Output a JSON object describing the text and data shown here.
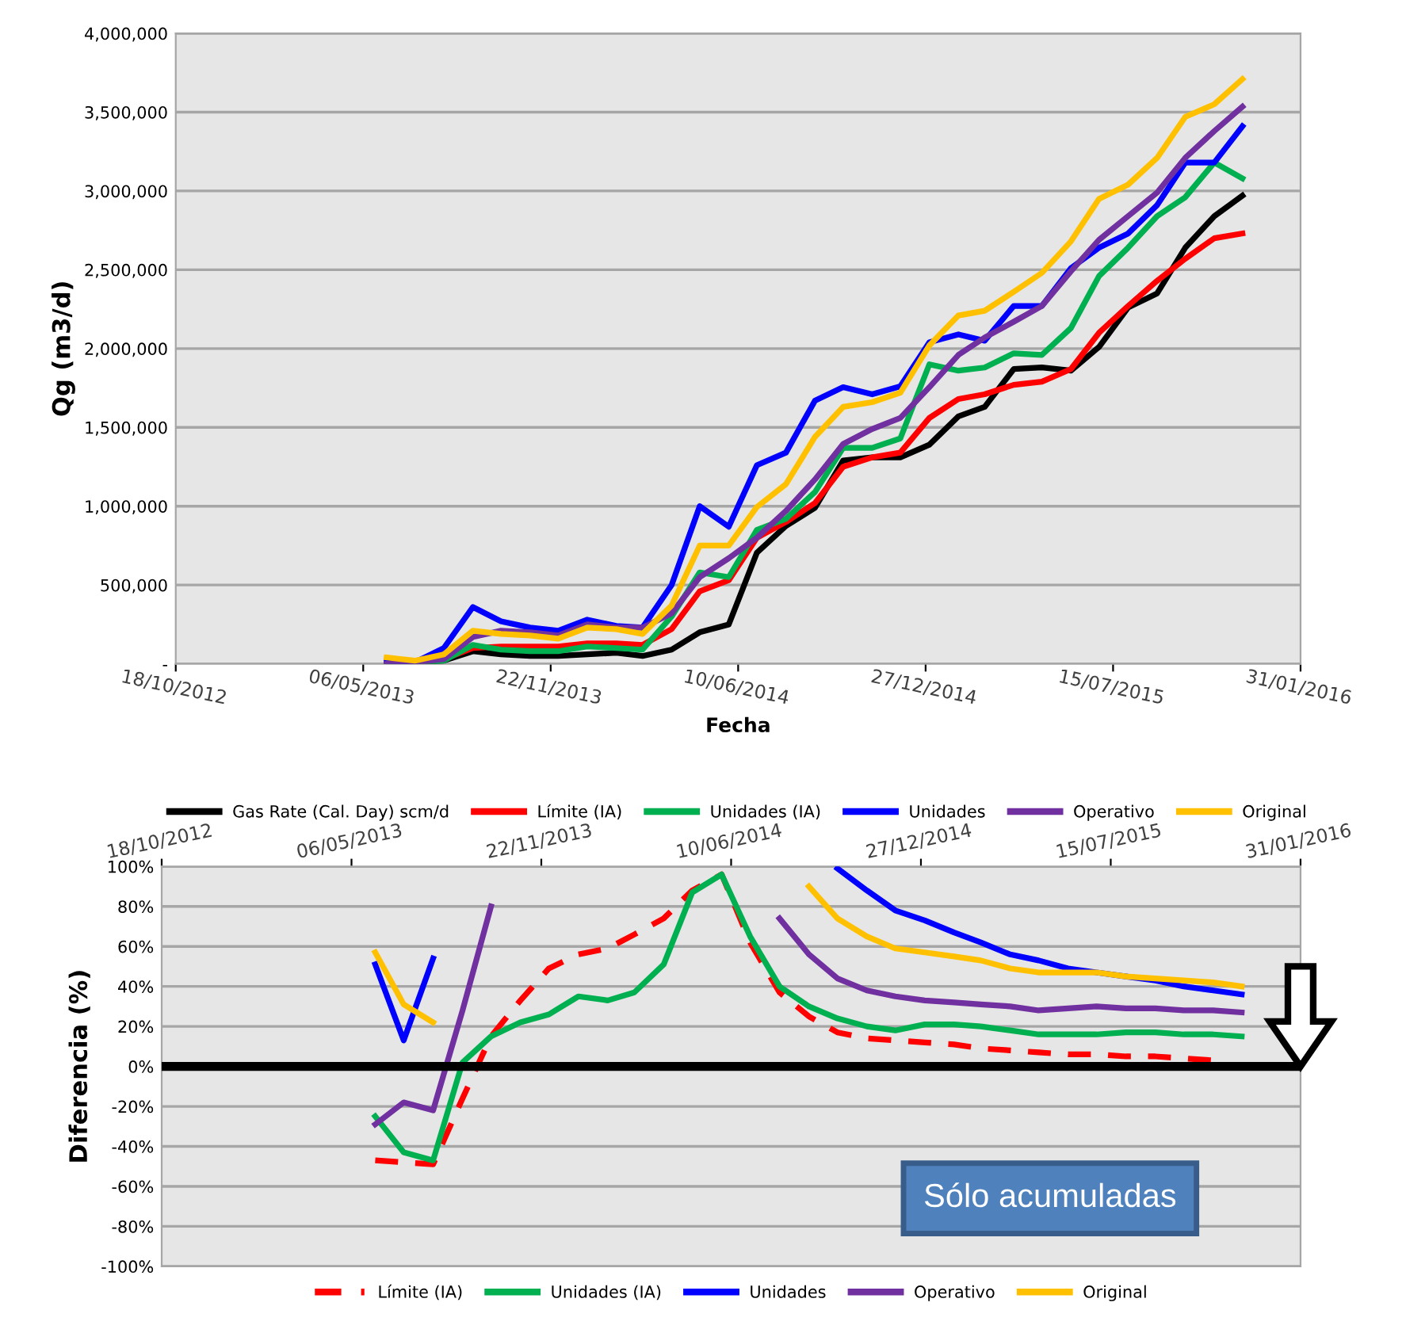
{
  "chart_data": [
    {
      "type": "line",
      "ylabel": "Qg (m3/d)",
      "xlabel": "Fecha",
      "grid": "y",
      "legend": "bottom",
      "marker": "none",
      "x": [
        "2013-05-31",
        "2013-06-30",
        "2013-07-31",
        "2013-08-31",
        "2013-09-30",
        "2013-10-31",
        "2013-11-30",
        "2013-12-31",
        "2014-01-31",
        "2014-02-28",
        "2014-03-31",
        "2014-04-30",
        "2014-05-31",
        "2014-06-30",
        "2014-07-31",
        "2014-08-31",
        "2014-09-30",
        "2014-10-31",
        "2014-11-30",
        "2014-12-31",
        "2015-01-31",
        "2015-02-28",
        "2015-03-31",
        "2015-04-30",
        "2015-05-31",
        "2015-06-30",
        "2015-07-31",
        "2015-08-31",
        "2015-09-30",
        "2015-10-31",
        "2015-11-30"
      ],
      "xlim": [
        "2012-10-18",
        "2016-01-31"
      ],
      "xticks": [
        {
          "value": "2012-10-18",
          "label": "18/10/2012"
        },
        {
          "value": "2013-05-06",
          "label": "06/05/2013"
        },
        {
          "value": "2013-11-22",
          "label": "22/11/2013"
        },
        {
          "value": "2014-06-10",
          "label": "10/06/2014"
        },
        {
          "value": "2014-12-27",
          "label": "27/12/2014"
        },
        {
          "value": "2015-07-15",
          "label": "15/07/2015"
        },
        {
          "value": "2016-01-31",
          "label": "31/01/2016"
        }
      ],
      "ylim": [
        0,
        4000000
      ],
      "yticks": [
        {
          "value": 0,
          "label": "-"
        },
        {
          "value": 500000,
          "label": "500,000"
        },
        {
          "value": 1000000,
          "label": "1,000,000"
        },
        {
          "value": 1500000,
          "label": "1,500,000"
        },
        {
          "value": 2000000,
          "label": "2,000,000"
        },
        {
          "value": 2500000,
          "label": "2,500,000"
        },
        {
          "value": 3000000,
          "label": "3,000,000"
        },
        {
          "value": 3500000,
          "label": "3,500,000"
        },
        {
          "value": 4000000,
          "label": "4,000,000"
        }
      ],
      "series": [
        {
          "name": "Gas Rate (Cal. Day) scm/d",
          "color": "#000000",
          "line_style": "solid",
          "values": [
            0,
            10000,
            20000,
            80000,
            60000,
            50000,
            50000,
            60000,
            70000,
            50000,
            90000,
            200000,
            250000,
            705000,
            875000,
            990000,
            1290000,
            1310000,
            1310000,
            1390000,
            1570000,
            1630000,
            1870000,
            1880000,
            1860000,
            2010000,
            2260000,
            2350000,
            2640000,
            2840000,
            2970000
          ]
        },
        {
          "name": "Límite (IA)",
          "color": "#ff0000",
          "line_style": "solid",
          "values": [
            10000,
            10000,
            30000,
            100000,
            110000,
            110000,
            110000,
            130000,
            130000,
            120000,
            220000,
            460000,
            530000,
            800000,
            900000,
            1020000,
            1250000,
            1310000,
            1340000,
            1560000,
            1680000,
            1710000,
            1770000,
            1790000,
            1870000,
            2100000,
            2270000,
            2430000,
            2570000,
            2700000,
            2730000
          ]
        },
        {
          "name": "Unidades (IA)",
          "color": "#00b050",
          "line_style": "solid",
          "values": [
            0,
            10000,
            20000,
            120000,
            90000,
            80000,
            80000,
            110000,
            100000,
            90000,
            300000,
            580000,
            550000,
            850000,
            920000,
            1090000,
            1370000,
            1370000,
            1430000,
            1900000,
            1860000,
            1880000,
            1970000,
            1960000,
            2130000,
            2460000,
            2640000,
            2840000,
            2960000,
            3180000,
            3080000
          ]
        },
        {
          "name": "Unidades",
          "color": "#0000ff",
          "line_style": "solid",
          "values": [
            20000,
            10000,
            100000,
            360000,
            270000,
            230000,
            210000,
            280000,
            240000,
            230000,
            500000,
            1000000,
            870000,
            1260000,
            1340000,
            1670000,
            1755000,
            1710000,
            1760000,
            2040000,
            2090000,
            2050000,
            2270000,
            2270000,
            2510000,
            2640000,
            2730000,
            2910000,
            3180000,
            3180000,
            3410000
          ]
        },
        {
          "name": "Operativo",
          "color": "#7030a0",
          "line_style": "solid",
          "values": [
            0,
            10000,
            30000,
            170000,
            210000,
            200000,
            180000,
            250000,
            230000,
            230000,
            320000,
            550000,
            670000,
            800000,
            970000,
            1170000,
            1395000,
            1490000,
            1560000,
            1755000,
            1960000,
            2070000,
            2170000,
            2270000,
            2490000,
            2690000,
            2840000,
            2990000,
            3210000,
            3380000,
            3535000
          ]
        },
        {
          "name": "Original",
          "color": "#ffc000",
          "line_style": "solid",
          "values": [
            40000,
            20000,
            60000,
            210000,
            190000,
            180000,
            160000,
            230000,
            220000,
            190000,
            370000,
            750000,
            750000,
            995000,
            1140000,
            1440000,
            1630000,
            1660000,
            1720000,
            2020000,
            2210000,
            2240000,
            2360000,
            2480000,
            2680000,
            2950000,
            3040000,
            3210000,
            3470000,
            3550000,
            3710000
          ]
        }
      ]
    },
    {
      "type": "line",
      "ylabel": "Diferencia (%)",
      "grid": "y",
      "legend": "bottom",
      "marker": "none",
      "annotations": [
        "Sólo acumuladas"
      ],
      "x": [
        "2013-05-31",
        "2013-06-30",
        "2013-07-31",
        "2013-08-31",
        "2013-09-30",
        "2013-10-31",
        "2013-11-30",
        "2013-12-31",
        "2014-01-31",
        "2014-02-28",
        "2014-03-31",
        "2014-04-30",
        "2014-05-31",
        "2014-06-30",
        "2014-07-31",
        "2014-08-31",
        "2014-09-30",
        "2014-10-31",
        "2014-11-30",
        "2014-12-31",
        "2015-01-31",
        "2015-02-28",
        "2015-03-31",
        "2015-04-30",
        "2015-05-31",
        "2015-06-30",
        "2015-07-31",
        "2015-08-31",
        "2015-09-30",
        "2015-10-31",
        "2015-11-30"
      ],
      "xlim": [
        "2012-10-18",
        "2016-01-31"
      ],
      "xticks": [
        {
          "value": "2012-10-18",
          "label": "18/10/2012"
        },
        {
          "value": "2013-05-06",
          "label": "06/05/2013"
        },
        {
          "value": "2013-11-22",
          "label": "22/11/2013"
        },
        {
          "value": "2014-06-10",
          "label": "10/06/2014"
        },
        {
          "value": "2014-12-27",
          "label": "27/12/2014"
        },
        {
          "value": "2015-07-15",
          "label": "15/07/2015"
        },
        {
          "value": "2016-01-31",
          "label": "31/01/2016"
        }
      ],
      "ylim": [
        -100,
        100
      ],
      "yticks": [
        {
          "value": -100,
          "label": "-100%"
        },
        {
          "value": -80,
          "label": "-80%"
        },
        {
          "value": -60,
          "label": "-60%"
        },
        {
          "value": -40,
          "label": "-40%"
        },
        {
          "value": -20,
          "label": "-20%"
        },
        {
          "value": 0,
          "label": "0%"
        },
        {
          "value": 20,
          "label": "20%"
        },
        {
          "value": 40,
          "label": "40%"
        },
        {
          "value": 60,
          "label": "60%"
        },
        {
          "value": 80,
          "label": "80%"
        },
        {
          "value": 100,
          "label": "100%"
        }
      ],
      "ref_lines": [
        {
          "axis": "y",
          "value": 0,
          "color": "#000000"
        }
      ],
      "series": [
        {
          "name": "Límite (IA)",
          "color": "#ff0000",
          "line_style": "dashed",
          "values": [
            -47,
            -48,
            -49,
            -16,
            15,
            33,
            49,
            56,
            59,
            66,
            74,
            88,
            96,
            62,
            37,
            25,
            17,
            14,
            13,
            12,
            11,
            9,
            8,
            7,
            6,
            6,
            5,
            5,
            4,
            3,
            null
          ]
        },
        {
          "name": "Unidades (IA)",
          "color": "#00b050",
          "line_style": "solid",
          "values": [
            -25,
            -43,
            -47,
            2,
            15,
            22,
            26,
            35,
            33,
            37,
            51,
            87,
            96,
            65,
            40,
            30,
            24,
            20,
            18,
            21,
            21,
            20,
            18,
            16,
            16,
            16,
            17,
            17,
            16,
            16,
            15
          ]
        },
        {
          "name": "Unidades",
          "color": "#0000ff",
          "line_style": "solid",
          "values": [
            51,
            13,
            54,
            null,
            null,
            null,
            null,
            null,
            null,
            null,
            null,
            null,
            null,
            null,
            null,
            null,
            99,
            88,
            78,
            73,
            67,
            62,
            56,
            53,
            49,
            47,
            45,
            43,
            40,
            38,
            36
          ]
        },
        {
          "name": "Operativo",
          "color": "#7030a0",
          "line_style": "solid",
          "values": [
            -29,
            -18,
            -22,
            28,
            80,
            null,
            null,
            null,
            null,
            null,
            null,
            null,
            null,
            null,
            74,
            56,
            44,
            38,
            35,
            33,
            32,
            31,
            30,
            28,
            29,
            30,
            29,
            29,
            28,
            28,
            27
          ]
        },
        {
          "name": "Original",
          "color": "#ffc000",
          "line_style": "solid",
          "values": [
            57,
            31,
            22,
            null,
            null,
            null,
            null,
            null,
            null,
            null,
            null,
            null,
            null,
            null,
            null,
            90,
            74,
            65,
            59,
            57,
            55,
            53,
            49,
            47,
            47,
            47,
            45,
            44,
            43,
            42,
            40
          ]
        }
      ]
    }
  ]
}
